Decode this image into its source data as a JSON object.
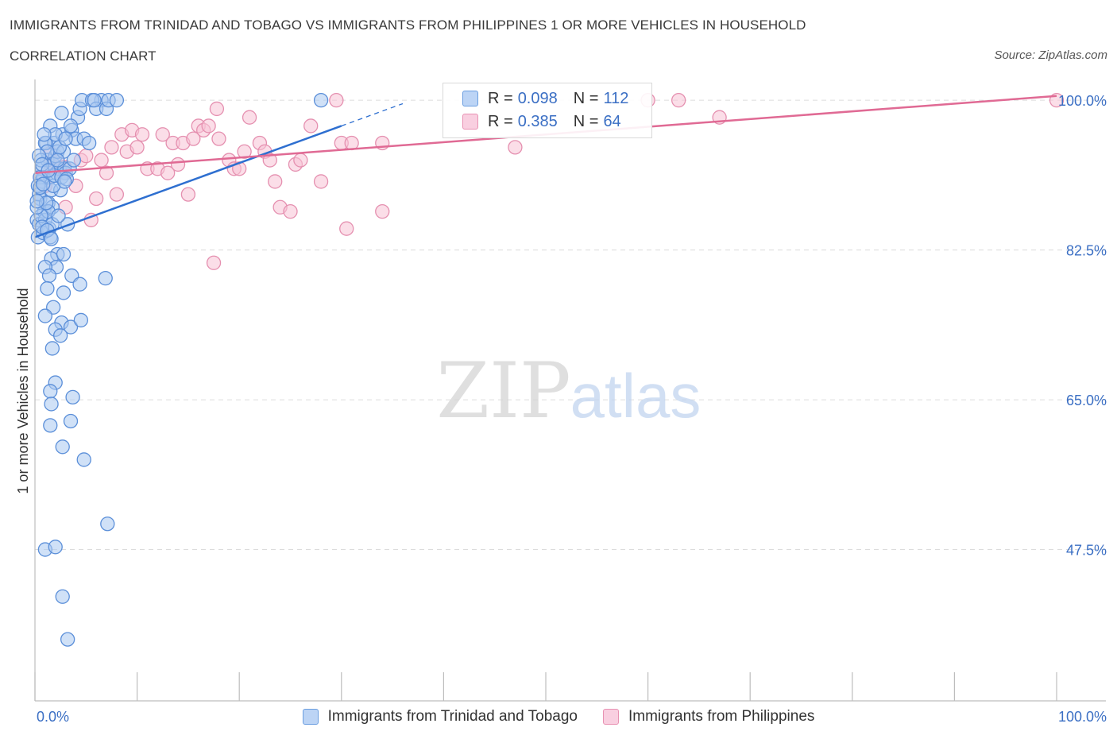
{
  "chart_data": {
    "type": "scatter",
    "title": "IMMIGRANTS FROM TRINIDAD AND TOBAGO VS IMMIGRANTS FROM PHILIPPINES 1 OR MORE VEHICLES IN HOUSEHOLD",
    "subtitle": "CORRELATION CHART",
    "source": "Source: ZipAtlas.com",
    "ylabel": "1 or more Vehicles in Household",
    "xlabel": "",
    "xlim": [
      0,
      100
    ],
    "ylim": [
      30,
      101.5
    ],
    "x_tick_labels": [
      {
        "value": 0,
        "label": "0.0%"
      },
      {
        "value": 100,
        "label": "100.0%"
      }
    ],
    "y_tick_labels": [
      {
        "value": 47.5,
        "label": "47.5%"
      },
      {
        "value": 65.0,
        "label": "65.0%"
      },
      {
        "value": 82.5,
        "label": "82.5%"
      },
      {
        "value": 100.0,
        "label": "100.0%"
      }
    ],
    "watermark": {
      "zip": "ZIP",
      "atlas": "atlas"
    },
    "legend_box": {
      "r_label": "R =",
      "n_label": "N =",
      "rows": [
        {
          "series": "blue",
          "r": "0.098",
          "n": "112"
        },
        {
          "series": "pink",
          "r": "0.385",
          "n": "64"
        }
      ]
    },
    "series": [
      {
        "name": "Immigrants from Trinidad and Tobago",
        "key": "blue",
        "fill": "#a9c8f0",
        "stroke": "#5b8fd9",
        "line": "#2e6fd0",
        "trend": {
          "x0": 0,
          "y0": 84.0,
          "x1": 30,
          "y1": 97.0,
          "dash_to_x": 36
        },
        "points": [
          [
            0.2,
            86
          ],
          [
            0.3,
            84
          ],
          [
            0.4,
            85.5
          ],
          [
            0.5,
            88.5
          ],
          [
            0.6,
            90.5
          ],
          [
            0.7,
            92
          ],
          [
            0.8,
            91
          ],
          [
            0.4,
            89
          ],
          [
            0.9,
            87
          ],
          [
            1,
            86
          ],
          [
            1.1,
            95
          ],
          [
            1.2,
            93
          ],
          [
            1.3,
            88
          ],
          [
            1.4,
            85
          ],
          [
            1.5,
            91
          ],
          [
            1.6,
            89.5
          ],
          [
            1.7,
            87.5
          ],
          [
            1.8,
            92.5
          ],
          [
            1.9,
            95
          ],
          [
            2,
            93.5
          ],
          [
            2.1,
            91.5
          ],
          [
            2.2,
            94
          ],
          [
            2.4,
            92
          ],
          [
            2.5,
            89.5
          ],
          [
            2.6,
            98.5
          ],
          [
            2.7,
            96
          ],
          [
            2.8,
            94
          ],
          [
            2.9,
            92
          ],
          [
            3,
            91.5
          ],
          [
            3.2,
            85.5
          ],
          [
            3.4,
            92
          ],
          [
            3.6,
            96.5
          ],
          [
            3.8,
            93
          ],
          [
            4,
            95.5
          ],
          [
            4.2,
            98
          ],
          [
            4.4,
            99
          ],
          [
            4.6,
            100
          ],
          [
            4.8,
            95.5
          ],
          [
            5.3,
            95
          ],
          [
            6.5,
            100
          ],
          [
            5.6,
            100
          ],
          [
            6,
            99
          ],
          [
            7,
            99
          ],
          [
            5.8,
            100
          ],
          [
            7.2,
            100
          ],
          [
            8,
            100
          ],
          [
            1,
            95
          ],
          [
            1.5,
            97
          ],
          [
            2,
            96
          ],
          [
            2.4,
            94.5
          ],
          [
            3,
            95.5
          ],
          [
            3.5,
            97
          ],
          [
            2.2,
            93
          ],
          [
            1.2,
            94
          ],
          [
            0.9,
            96
          ],
          [
            1.8,
            90
          ],
          [
            1.3,
            87
          ],
          [
            0.6,
            86.5
          ],
          [
            0.8,
            84.5
          ],
          [
            1.5,
            84
          ],
          [
            2.2,
            82
          ],
          [
            1.6,
            81.5
          ],
          [
            2.1,
            80.5
          ],
          [
            2.8,
            82
          ],
          [
            3.6,
            79.5
          ],
          [
            1,
            80.5
          ],
          [
            1.4,
            79.5
          ],
          [
            4.4,
            78.5
          ],
          [
            1.2,
            78
          ],
          [
            2.8,
            77.5
          ],
          [
            6.9,
            79.2
          ],
          [
            2.6,
            74
          ],
          [
            3.5,
            73.5
          ],
          [
            4.5,
            74.3
          ],
          [
            1.8,
            75.8
          ],
          [
            2,
            73.2
          ],
          [
            2.5,
            72.5
          ],
          [
            1,
            74.8
          ],
          [
            1.7,
            71
          ],
          [
            2,
            67
          ],
          [
            1.5,
            66
          ],
          [
            1.6,
            64.5
          ],
          [
            3.7,
            65.3
          ],
          [
            3.5,
            62.5
          ],
          [
            1.5,
            62
          ],
          [
            2.7,
            59.5
          ],
          [
            4.8,
            58
          ],
          [
            7.1,
            50.5
          ],
          [
            1,
            47.5
          ],
          [
            2,
            47.8
          ],
          [
            2.7,
            42
          ],
          [
            3.2,
            37
          ],
          [
            28,
            100
          ],
          [
            0.5,
            91
          ],
          [
            0.3,
            90
          ],
          [
            0.2,
            87.5
          ],
          [
            0.6,
            93
          ],
          [
            1.1,
            88
          ],
          [
            1.7,
            85.5
          ],
          [
            2.3,
            86.5
          ],
          [
            0.4,
            93.5
          ],
          [
            0.7,
            92.5
          ],
          [
            1.9,
            91.2
          ],
          [
            2.6,
            91
          ],
          [
            3.1,
            90.8
          ],
          [
            0.5,
            89.8
          ],
          [
            0.8,
            90.2
          ],
          [
            1.3,
            91.8
          ],
          [
            2.9,
            90.5
          ],
          [
            0.2,
            88.2
          ],
          [
            0.7,
            85.2
          ],
          [
            1.2,
            84.8
          ],
          [
            1.6,
            83.8
          ]
        ]
      },
      {
        "name": "Immigrants from Philippines",
        "key": "pink",
        "fill": "#f7c2d6",
        "stroke": "#e590b0",
        "line": "#e06a94",
        "trend": {
          "x0": 0,
          "y0": 91.5,
          "x1": 100,
          "y1": 100.5,
          "dash_to_x": 100
        },
        "points": [
          [
            0.5,
            91
          ],
          [
            1,
            90
          ],
          [
            1.5,
            92.5
          ],
          [
            2,
            92
          ],
          [
            2.8,
            91.5
          ],
          [
            3,
            87.5
          ],
          [
            4,
            90
          ],
          [
            4.5,
            93
          ],
          [
            5,
            93.5
          ],
          [
            5.5,
            86
          ],
          [
            6,
            88.5
          ],
          [
            6.5,
            93
          ],
          [
            7,
            91.5
          ],
          [
            7.5,
            94.5
          ],
          [
            8,
            89
          ],
          [
            8.5,
            96
          ],
          [
            9,
            94
          ],
          [
            9.5,
            96.5
          ],
          [
            10,
            94.5
          ],
          [
            10.5,
            96
          ],
          [
            11,
            92
          ],
          [
            12,
            92
          ],
          [
            12.5,
            96
          ],
          [
            13,
            91.5
          ],
          [
            13.5,
            95
          ],
          [
            14,
            92.5
          ],
          [
            14.5,
            95
          ],
          [
            15,
            89
          ],
          [
            15.5,
            95.5
          ],
          [
            16,
            97
          ],
          [
            16.5,
            96.5
          ],
          [
            17,
            97
          ],
          [
            17.5,
            81
          ],
          [
            17.8,
            99
          ],
          [
            18,
            95.5
          ],
          [
            19,
            93
          ],
          [
            19.5,
            92
          ],
          [
            20,
            92
          ],
          [
            20.5,
            94
          ],
          [
            21,
            98
          ],
          [
            22,
            95
          ],
          [
            22.5,
            94
          ],
          [
            23,
            93
          ],
          [
            23.5,
            90.5
          ],
          [
            24,
            87.5
          ],
          [
            25,
            87
          ],
          [
            25.5,
            92.5
          ],
          [
            26,
            93
          ],
          [
            27,
            97
          ],
          [
            28,
            90.5
          ],
          [
            29.5,
            100
          ],
          [
            30,
            95
          ],
          [
            30.5,
            85
          ],
          [
            31,
            95
          ],
          [
            34,
            95
          ],
          [
            34,
            87
          ],
          [
            47,
            94.5
          ],
          [
            60,
            100
          ],
          [
            63,
            100
          ],
          [
            67,
            98
          ],
          [
            100,
            100
          ],
          [
            1.5,
            93.8
          ],
          [
            2.2,
            92.9
          ],
          [
            2.9,
            92.2
          ]
        ]
      }
    ]
  }
}
